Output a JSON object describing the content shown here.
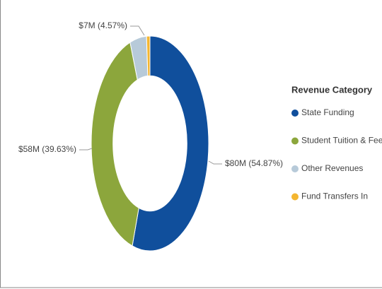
{
  "chart_data": {
    "type": "donut",
    "legend_title": "Revenue Category",
    "categories": [
      "State Funding",
      "Student Tuition & Fees",
      "Other Revenues",
      "Fund Transfers In"
    ],
    "values": [
      54.87,
      39.63,
      4.57,
      0.93
    ],
    "value_labels": [
      "$80M (54.87%)",
      "$58M (39.63%)",
      "$7M (4.57%)",
      null
    ],
    "colors": [
      "#104f9c",
      "#8ca63c",
      "#b7cad9",
      "#f4b630"
    ],
    "legend": "right"
  }
}
